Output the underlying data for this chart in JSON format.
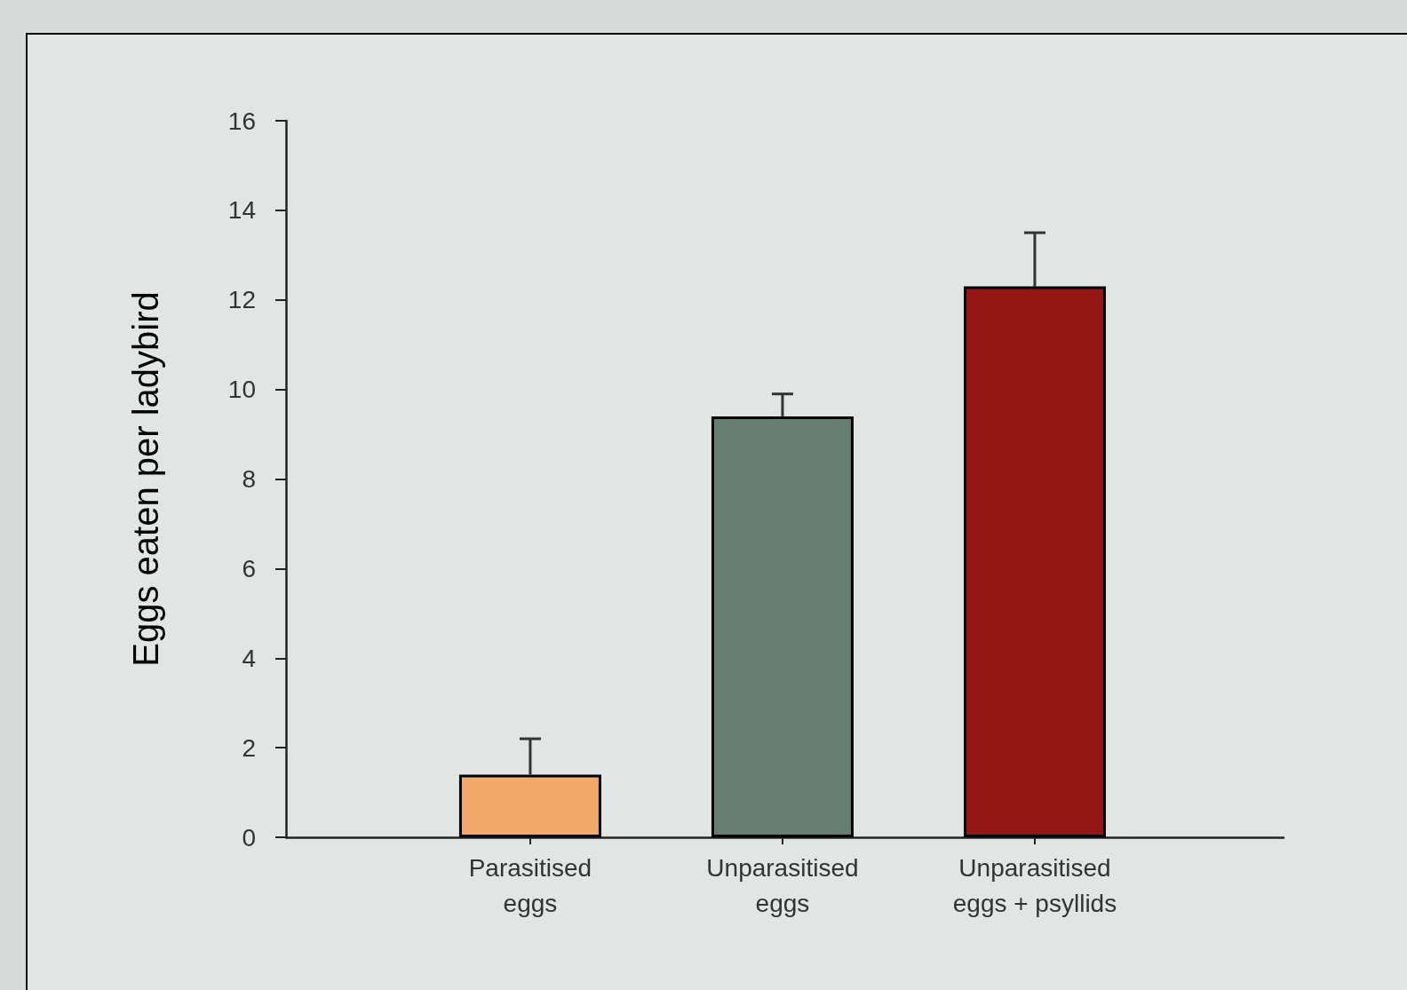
{
  "chart_data": {
    "type": "bar",
    "ylabel": "Eggs eaten per ladybird",
    "categories": [
      "Parasitised\neggs",
      "Unparasitised\neggs",
      "Unparasitised\neggs + psyllids"
    ],
    "values": [
      1.4,
      9.4,
      12.3
    ],
    "errors": [
      [
        1.4,
        2.2
      ],
      [
        9.4,
        9.9
      ],
      [
        12.3,
        13.5
      ]
    ],
    "colors": [
      "#f2a96b",
      "#667f72",
      "#941716"
    ],
    "ylim": [
      0,
      16
    ],
    "yticks": [
      0,
      2,
      4,
      6,
      8,
      10,
      12,
      14,
      16
    ],
    "grid": false
  }
}
